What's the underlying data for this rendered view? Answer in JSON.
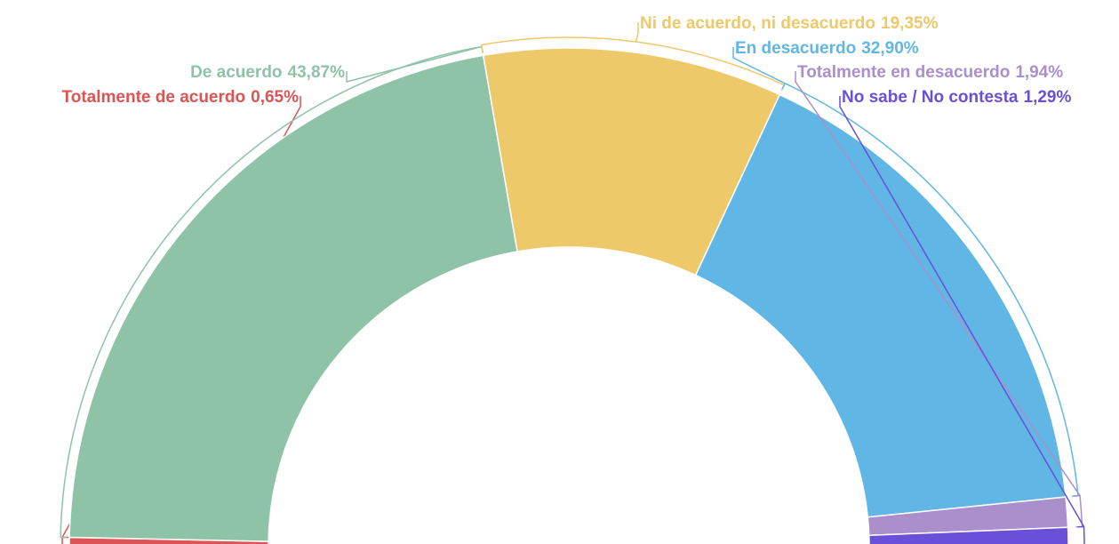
{
  "chart_data": {
    "type": "semi-donut",
    "categories": [
      "Totalmente de acuerdo",
      "De acuerdo",
      "Ni de acuerdo, ni desacuerdo",
      "En desacuerdo",
      "Totalmente en desacuerdo",
      "No sabe / No contesta"
    ],
    "values": [
      0.65,
      43.87,
      19.35,
      32.9,
      1.94,
      1.29
    ],
    "value_labels": [
      "0,65%",
      "43,87%",
      "19,35%",
      "32,90%",
      "1,94%",
      "1,29%"
    ],
    "colors": [
      "#dc5454",
      "#8fc3a8",
      "#eec96a",
      "#60b7e6",
      "#ab8fcc",
      "#6a4fd8"
    ]
  }
}
